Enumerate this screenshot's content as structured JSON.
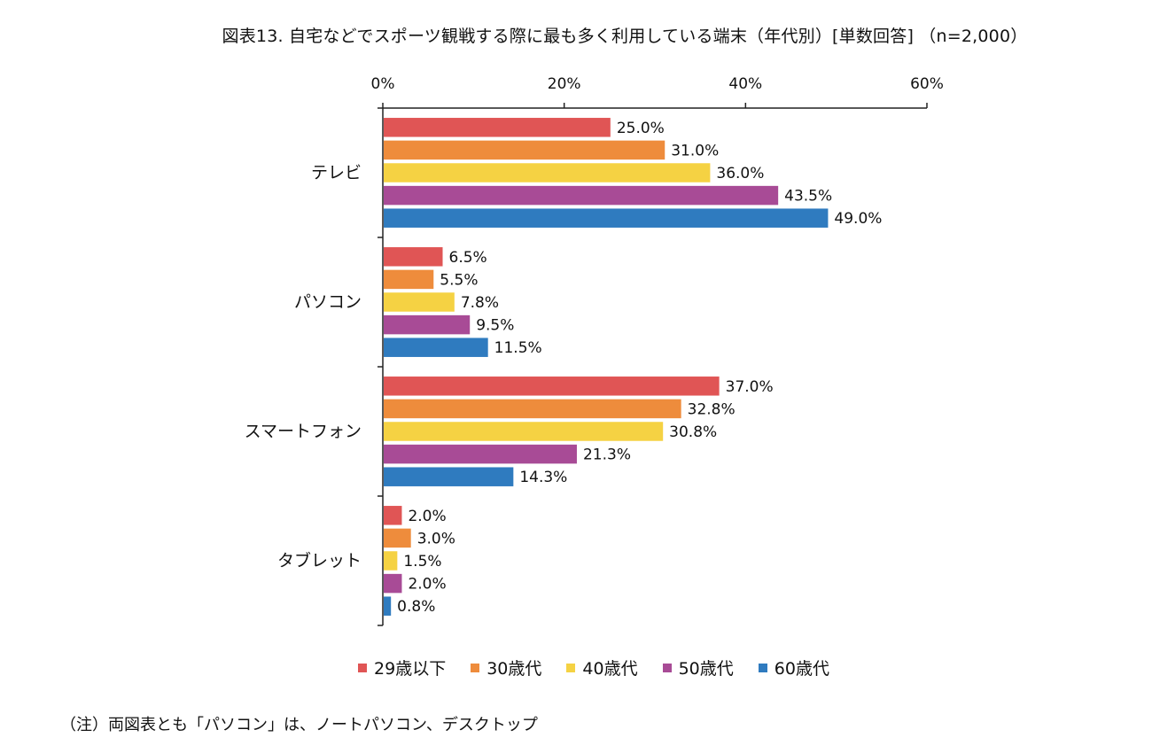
{
  "title": "図表13. 自宅などでスポーツ観戦する際に最も多く利用している端末（年代別）[単数回答] （n=2,000）",
  "note": "（注）両図表とも「パソコン」は、ノートパソコン、デスクトップ",
  "colors": [
    "#e05555",
    "#ee8c3c",
    "#f5d243",
    "#a84b96",
    "#2f7bbf"
  ],
  "chart_data": {
    "type": "bar",
    "orientation": "horizontal",
    "categories": [
      "テレビ",
      "パソコン",
      "スマートフォン",
      "タブレット"
    ],
    "series": [
      {
        "name": "29歳以下",
        "values": [
          25.0,
          6.5,
          37.0,
          2.0
        ]
      },
      {
        "name": "30歳代",
        "values": [
          31.0,
          5.5,
          32.8,
          3.0
        ]
      },
      {
        "name": "40歳代",
        "values": [
          36.0,
          7.8,
          30.8,
          1.5
        ]
      },
      {
        "name": "50歳代",
        "values": [
          43.5,
          9.5,
          21.3,
          2.0
        ]
      },
      {
        "name": "60歳代",
        "values": [
          49.0,
          11.5,
          14.3,
          0.8
        ]
      }
    ],
    "data_labels": [
      [
        "25.0%",
        "6.5%",
        "37.0%",
        "2.0%"
      ],
      [
        "31.0%",
        "5.5%",
        "32.8%",
        "3.0%"
      ],
      [
        "36.0%",
        "7.8%",
        "30.8%",
        "1.5%"
      ],
      [
        "43.5%",
        "9.5%",
        "21.3%",
        "2.0%"
      ],
      [
        "49.0%",
        "11.5%",
        "14.3%",
        "0.8%"
      ]
    ],
    "xticks": [
      "0%",
      "20%",
      "40%",
      "60%"
    ],
    "xlim": [
      0,
      60
    ],
    "xaxis_position": "top",
    "legend_position": "bottom",
    "grid": false
  }
}
